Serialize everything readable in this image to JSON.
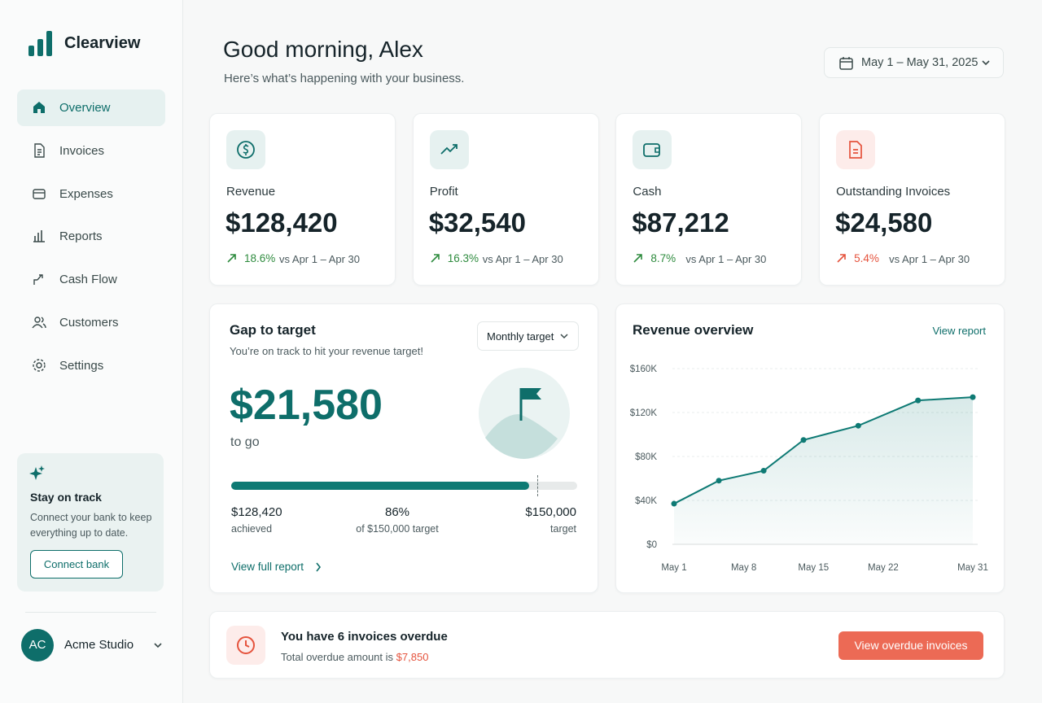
{
  "sidebar": {
    "brand": "Clearview",
    "nav": [
      {
        "label": "Overview",
        "active": true
      },
      {
        "label": "Invoices"
      },
      {
        "label": "Expenses"
      },
      {
        "label": "Reports"
      },
      {
        "label": "Cash Flow"
      },
      {
        "label": "Customers"
      },
      {
        "label": "Settings"
      }
    ],
    "promo": {
      "title": "Stay on track",
      "text": "Connect your bank to keep everything up to date.",
      "button": "Connect bank"
    },
    "account": {
      "initials": "AC",
      "name": "Acme Studio"
    }
  },
  "header": {
    "greeting": "Good morning, Alex",
    "subtitle": "Here’s what’s happening with your business.",
    "date_range": "May 1 – May 31, 2025"
  },
  "kpis": [
    {
      "label": "Revenue",
      "value": "$128,420",
      "change": "18.6%",
      "comparison": "vs Apr 1 – Apr 30",
      "color": "#2e8b3e"
    },
    {
      "label": "Profit",
      "value": "$32,540",
      "change": "16.3%",
      "comparison": "vs Apr 1 – Apr 30",
      "color": "#2e8b3e"
    },
    {
      "label": "Cash",
      "value": "$87,212",
      "change": "8.7%",
      "comparison": "vs Apr 1 – Apr 30",
      "color": "#2e8b3e"
    },
    {
      "label": "Outstanding Invoices",
      "value": "$24,580",
      "change": "5.4%",
      "comparison": "vs Apr 1 – Apr 30",
      "color": "#e5533d"
    }
  ],
  "gap": {
    "title": "Gap to target",
    "subtitle": "You’re on track to hit your revenue target!",
    "select": "Monthly target",
    "amount": "$21,580",
    "amount_caption": "to go",
    "achieved": "$128,420",
    "achieved_label": "achieved",
    "percent": "86%",
    "percent_label": "of $150,000 target",
    "target": "$150,000",
    "target_label": "target",
    "link": "View full report"
  },
  "revenue_chart": {
    "type": "line",
    "title": "Revenue overview",
    "link": "View report",
    "x": [
      1,
      5.5,
      10,
      14,
      19.5,
      25.5,
      31
    ],
    "values": [
      37000,
      58000,
      67000,
      95000,
      108000,
      131000,
      134000
    ],
    "color": "#0e7a74",
    "xlim": [
      1,
      31
    ],
    "xticks": [
      {
        "value": 1,
        "label": "May 1"
      },
      {
        "value": 8,
        "label": "May 8"
      },
      {
        "value": 15,
        "label": "May 15"
      },
      {
        "value": 22,
        "label": "May 22"
      },
      {
        "value": 31,
        "label": "May 31"
      }
    ],
    "ylim": [
      0,
      160000
    ],
    "yticks": [
      {
        "value": 0,
        "label": "$0"
      },
      {
        "value": 40000,
        "label": "$40K"
      },
      {
        "value": 80000,
        "label": "$80K"
      },
      {
        "value": 120000,
        "label": "$120K"
      },
      {
        "value": 160000,
        "label": "$160K"
      }
    ],
    "grid": true
  },
  "overdue": {
    "title": "You have 6 invoices overdue",
    "text": "Total overdue amount is",
    "amount": "$7,850",
    "button": "View overdue invoices"
  }
}
